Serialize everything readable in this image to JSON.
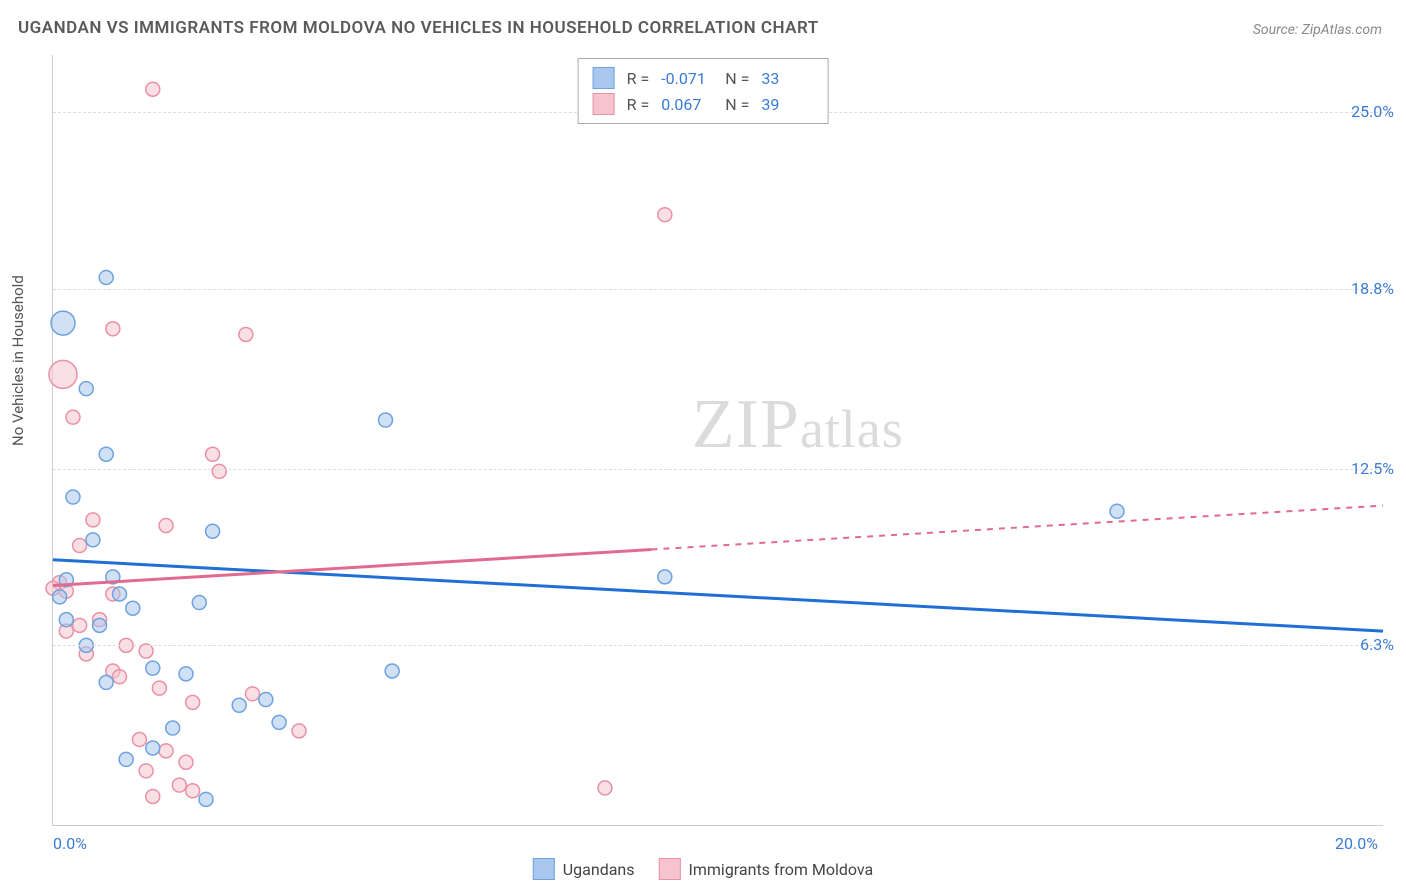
{
  "title": "UGANDAN VS IMMIGRANTS FROM MOLDOVA NO VEHICLES IN HOUSEHOLD CORRELATION CHART",
  "source": "Source: ZipAtlas.com",
  "ylabel": "No Vehicles in Household",
  "watermark": {
    "a": "ZIP",
    "b": "atlas"
  },
  "colors": {
    "series1_fill": "#a9c7ec",
    "series1_stroke": "#6fa3de",
    "series2_fill": "#f6c4cf",
    "series2_stroke": "#e991a6",
    "line1": "#1f6fd4",
    "line2": "#e16b8f",
    "axis_text": "#3a7bd5",
    "grid": "#dddddd",
    "text": "#555555"
  },
  "legend_top": [
    {
      "swatch": "series1",
      "r_label": "R =",
      "r_val": "-0.071",
      "n_label": "N =",
      "n_val": "33"
    },
    {
      "swatch": "series2",
      "r_label": "R =",
      "r_val": "0.067",
      "n_label": "N =",
      "n_val": "39"
    }
  ],
  "legend_bottom": [
    {
      "swatch": "series1",
      "label": "Ugandans"
    },
    {
      "swatch": "series2",
      "label": "Immigrants from Moldova"
    }
  ],
  "chart": {
    "type": "scatter",
    "xlim": [
      0,
      20
    ],
    "ylim": [
      0,
      27
    ],
    "xticks": [
      {
        "v": 0,
        "label": "0.0%"
      },
      {
        "v": 20,
        "label": "20.0%"
      }
    ],
    "yticks": [
      {
        "v": 6.3,
        "label": "6.3%"
      },
      {
        "v": 12.5,
        "label": "12.5%"
      },
      {
        "v": 18.8,
        "label": "18.8%"
      },
      {
        "v": 25.0,
        "label": "25.0%"
      }
    ],
    "trend_lines": [
      {
        "series": 1,
        "x1": 0,
        "y1": 9.3,
        "x2": 20,
        "y2": 6.8,
        "solid_until_x": 20
      },
      {
        "series": 2,
        "x1": 0,
        "y1": 8.4,
        "x2": 20,
        "y2": 11.2,
        "solid_until_x": 9.0
      }
    ],
    "points_series1": [
      {
        "x": 0.15,
        "y": 17.6,
        "r": 12
      },
      {
        "x": 0.8,
        "y": 19.2,
        "r": 7
      },
      {
        "x": 0.5,
        "y": 15.3,
        "r": 7
      },
      {
        "x": 0.8,
        "y": 13.0,
        "r": 7
      },
      {
        "x": 0.3,
        "y": 11.5,
        "r": 7
      },
      {
        "x": 2.4,
        "y": 10.3,
        "r": 7
      },
      {
        "x": 0.6,
        "y": 10.0,
        "r": 7
      },
      {
        "x": 0.9,
        "y": 8.7,
        "r": 7
      },
      {
        "x": 0.2,
        "y": 8.6,
        "r": 7
      },
      {
        "x": 1.0,
        "y": 8.1,
        "r": 7
      },
      {
        "x": 0.1,
        "y": 8.0,
        "r": 7
      },
      {
        "x": 2.2,
        "y": 7.8,
        "r": 7
      },
      {
        "x": 1.2,
        "y": 7.6,
        "r": 7
      },
      {
        "x": 0.2,
        "y": 7.2,
        "r": 7
      },
      {
        "x": 0.7,
        "y": 7.0,
        "r": 7
      },
      {
        "x": 0.5,
        "y": 6.3,
        "r": 7
      },
      {
        "x": 1.5,
        "y": 5.5,
        "r": 7
      },
      {
        "x": 2.0,
        "y": 5.3,
        "r": 7
      },
      {
        "x": 0.8,
        "y": 5.0,
        "r": 7
      },
      {
        "x": 3.2,
        "y": 4.4,
        "r": 7
      },
      {
        "x": 2.8,
        "y": 4.2,
        "r": 7
      },
      {
        "x": 3.4,
        "y": 3.6,
        "r": 7
      },
      {
        "x": 1.8,
        "y": 3.4,
        "r": 7
      },
      {
        "x": 1.5,
        "y": 2.7,
        "r": 7
      },
      {
        "x": 1.1,
        "y": 2.3,
        "r": 7
      },
      {
        "x": 2.3,
        "y": 0.9,
        "r": 7
      },
      {
        "x": 5.1,
        "y": 5.4,
        "r": 7
      },
      {
        "x": 5.0,
        "y": 14.2,
        "r": 7
      },
      {
        "x": 9.2,
        "y": 8.7,
        "r": 7
      },
      {
        "x": 16.0,
        "y": 11.0,
        "r": 7
      }
    ],
    "points_series2": [
      {
        "x": 0.15,
        "y": 15.8,
        "r": 14
      },
      {
        "x": 1.5,
        "y": 25.8,
        "r": 7
      },
      {
        "x": 0.9,
        "y": 17.4,
        "r": 7
      },
      {
        "x": 2.9,
        "y": 17.2,
        "r": 7
      },
      {
        "x": 0.3,
        "y": 14.3,
        "r": 7
      },
      {
        "x": 2.4,
        "y": 13.0,
        "r": 7
      },
      {
        "x": 2.5,
        "y": 12.4,
        "r": 7
      },
      {
        "x": 0.6,
        "y": 10.7,
        "r": 7
      },
      {
        "x": 1.7,
        "y": 10.5,
        "r": 7
      },
      {
        "x": 0.4,
        "y": 9.8,
        "r": 7
      },
      {
        "x": 0.1,
        "y": 8.5,
        "r": 7
      },
      {
        "x": 0.0,
        "y": 8.3,
        "r": 7
      },
      {
        "x": 0.2,
        "y": 8.2,
        "r": 7
      },
      {
        "x": 0.9,
        "y": 8.1,
        "r": 7
      },
      {
        "x": 0.7,
        "y": 7.2,
        "r": 7
      },
      {
        "x": 0.4,
        "y": 7.0,
        "r": 7
      },
      {
        "x": 0.2,
        "y": 6.8,
        "r": 7
      },
      {
        "x": 1.1,
        "y": 6.3,
        "r": 7
      },
      {
        "x": 1.4,
        "y": 6.1,
        "r": 7
      },
      {
        "x": 0.5,
        "y": 6.0,
        "r": 7
      },
      {
        "x": 0.9,
        "y": 5.4,
        "r": 7
      },
      {
        "x": 1.0,
        "y": 5.2,
        "r": 7
      },
      {
        "x": 1.6,
        "y": 4.8,
        "r": 7
      },
      {
        "x": 2.1,
        "y": 4.3,
        "r": 7
      },
      {
        "x": 3.0,
        "y": 4.6,
        "r": 7
      },
      {
        "x": 3.7,
        "y": 3.3,
        "r": 7
      },
      {
        "x": 1.3,
        "y": 3.0,
        "r": 7
      },
      {
        "x": 1.7,
        "y": 2.6,
        "r": 7
      },
      {
        "x": 2.0,
        "y": 2.2,
        "r": 7
      },
      {
        "x": 1.4,
        "y": 1.9,
        "r": 7
      },
      {
        "x": 1.9,
        "y": 1.4,
        "r": 7
      },
      {
        "x": 2.1,
        "y": 1.2,
        "r": 7
      },
      {
        "x": 1.5,
        "y": 1.0,
        "r": 7
      },
      {
        "x": 8.3,
        "y": 1.3,
        "r": 7
      },
      {
        "x": 9.2,
        "y": 21.4,
        "r": 7
      }
    ]
  }
}
